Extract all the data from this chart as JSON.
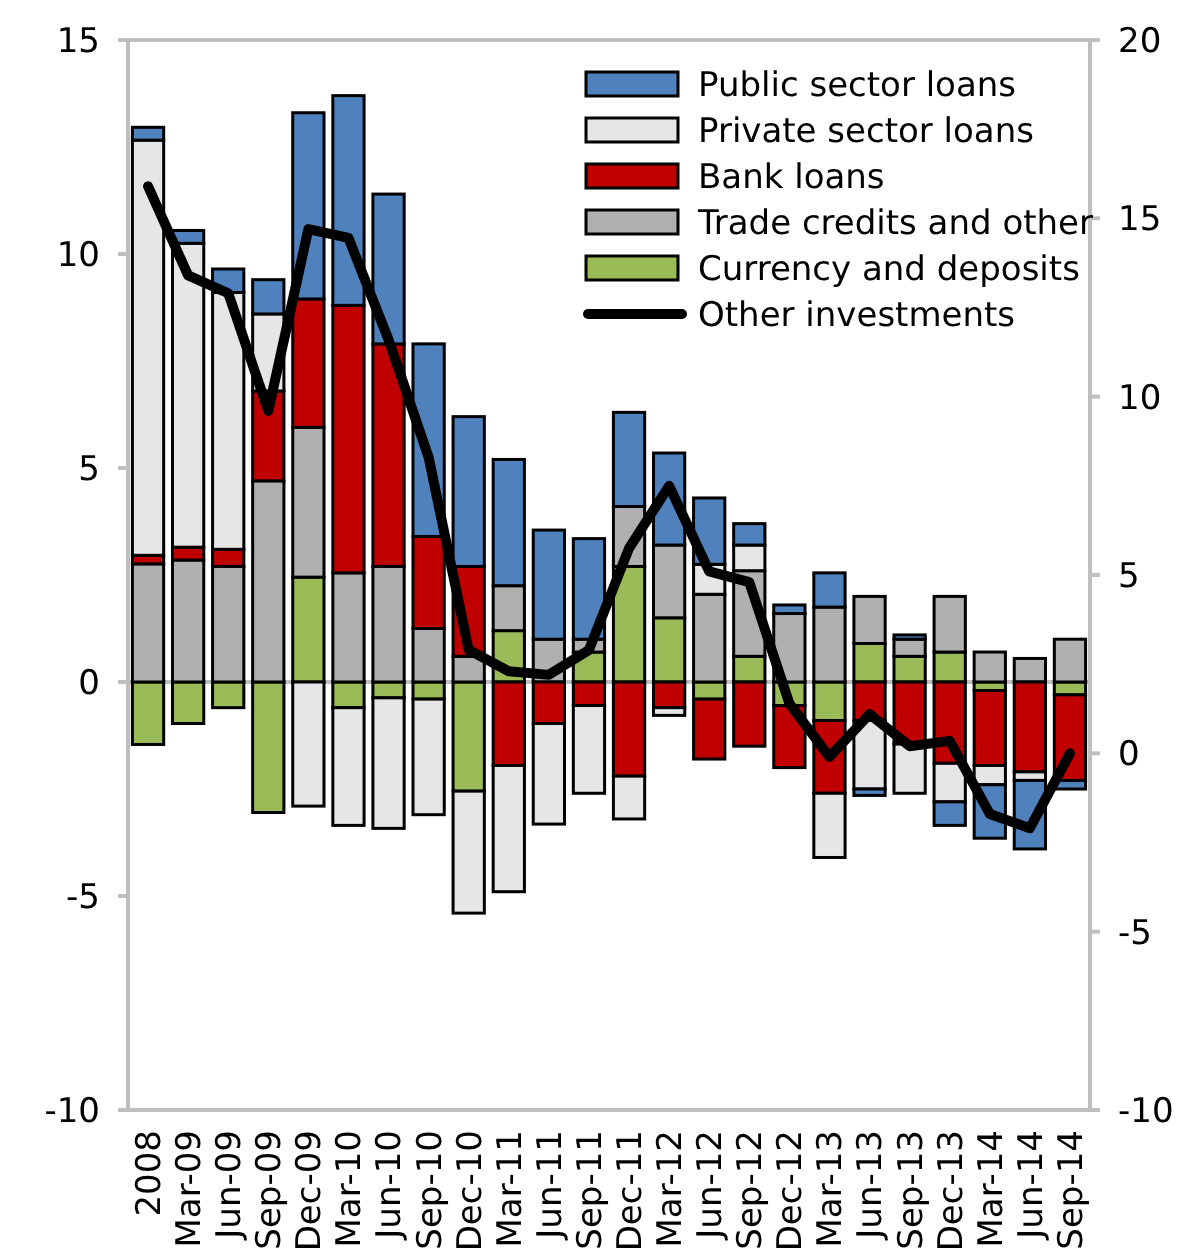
{
  "chart_data": {
    "type": "bar",
    "stacked": true,
    "categories": [
      "2008",
      "Mar-09",
      "Jun-09",
      "Sep-09",
      "Dec-09",
      "Mar-10",
      "Jun-10",
      "Sep-10",
      "Dec-10",
      "Mar-11",
      "Jun-11",
      "Sep-11",
      "Dec-11",
      "Mar-12",
      "Jun-12",
      "Sep-12",
      "Dec-12",
      "Mar-13",
      "Jun-13",
      "Sep-13",
      "Dec-13",
      "Mar-14",
      "Jun-14",
      "Sep-14"
    ],
    "series": [
      {
        "name": "Currency and deposits",
        "color": "#9bbb59",
        "values": [
          -1.46,
          -0.97,
          -0.6,
          -3.05,
          2.45,
          -0.6,
          -0.37,
          -0.4,
          -2.55,
          1.2,
          0,
          0.7,
          2.7,
          1.5,
          -0.4,
          0.6,
          -0.55,
          -0.9,
          0.9,
          0.6,
          0.7,
          -0.2,
          0,
          -0.3
        ]
      },
      {
        "name": "Trade credits and other",
        "color": "#b0b0b0",
        "values": [
          2.76,
          2.85,
          2.7,
          4.7,
          3.5,
          2.55,
          2.7,
          1.25,
          0.6,
          1.05,
          1.0,
          0.3,
          1.4,
          1.7,
          2.05,
          2.0,
          1.6,
          1.75,
          1.1,
          0.4,
          1.3,
          0.7,
          0.55,
          1.0
        ]
      },
      {
        "name": "Bank loans",
        "color": "#c00000",
        "values": [
          0.2,
          0.3,
          0.4,
          2.1,
          3.0,
          6.25,
          5.2,
          2.15,
          2.1,
          -1.95,
          -0.97,
          -0.55,
          -2.2,
          -0.6,
          -1.4,
          -1.5,
          -1.45,
          -1.7,
          -0.9,
          -1.45,
          -1.9,
          -1.75,
          -2.1,
          -2.0
        ]
      },
      {
        "name": "Private sector loans",
        "color": "#e6e6e6",
        "values": [
          9.7,
          7.1,
          6.0,
          1.8,
          -2.9,
          -2.75,
          -3.05,
          -2.7,
          -2.85,
          -2.95,
          -2.35,
          -2.05,
          -1.0,
          -0.18,
          0.7,
          0.6,
          0,
          -1.5,
          -1.6,
          -1.15,
          -0.9,
          -0.45,
          -0.2,
          0
        ]
      },
      {
        "name": "Public sector loans",
        "color": "#4f81bd",
        "values": [
          0.3,
          0.3,
          0.55,
          0.8,
          4.35,
          4.9,
          3.5,
          4.5,
          3.5,
          2.95,
          2.55,
          2.35,
          2.2,
          2.15,
          1.55,
          0.5,
          0.2,
          0.8,
          -0.15,
          0.1,
          -0.55,
          -1.25,
          -1.6,
          -0.2
        ]
      },
      {
        "name": "Other investments",
        "type": "line",
        "axis": "y2",
        "color": "#000000",
        "values": [
          15.9,
          13.4,
          12.9,
          9.6,
          14.7,
          14.45,
          11.6,
          8.3,
          2.9,
          2.3,
          2.2,
          2.9,
          5.75,
          7.5,
          5.1,
          4.8,
          1.4,
          -0.1,
          1.1,
          0.2,
          0.35,
          -1.7,
          -2.1,
          0.0
        ]
      }
    ],
    "ylim": [
      -10,
      15
    ],
    "yticks": [
      -10,
      -5,
      0,
      5,
      10,
      15
    ],
    "y2lim": [
      -10,
      20
    ],
    "y2ticks": [
      -10,
      -5,
      0,
      5,
      10,
      15,
      20
    ],
    "legend": "top right",
    "marker": "none",
    "line_style": "solid"
  }
}
